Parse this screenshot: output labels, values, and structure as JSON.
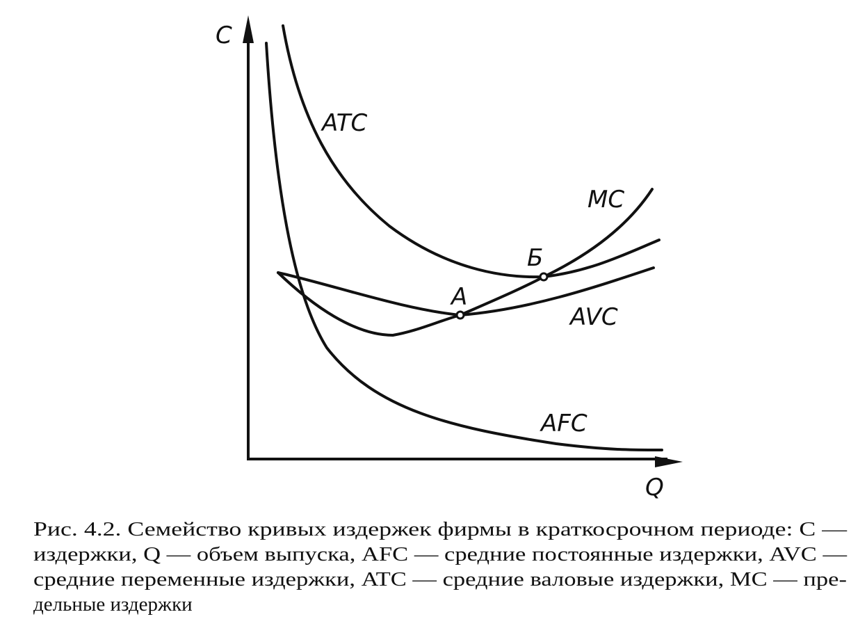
{
  "axes": {
    "y_label": "C",
    "x_label": "Q"
  },
  "curves": {
    "atc": "ATC",
    "mc": "MC",
    "avc": "AVC",
    "afc": "AFC"
  },
  "points": {
    "a": "A",
    "b": "Б"
  },
  "caption": [
    "Рис. 4.2. Семейство кривых издержек фирмы в краткосрочном периоде: C —",
    "издержки, Q — объем выпуска, AFC — средние постоянные издержки, AVC —",
    "средние переменные издержки, ATC — средние валовые издержки, MC — пре-",
    "дельные издержки"
  ]
}
